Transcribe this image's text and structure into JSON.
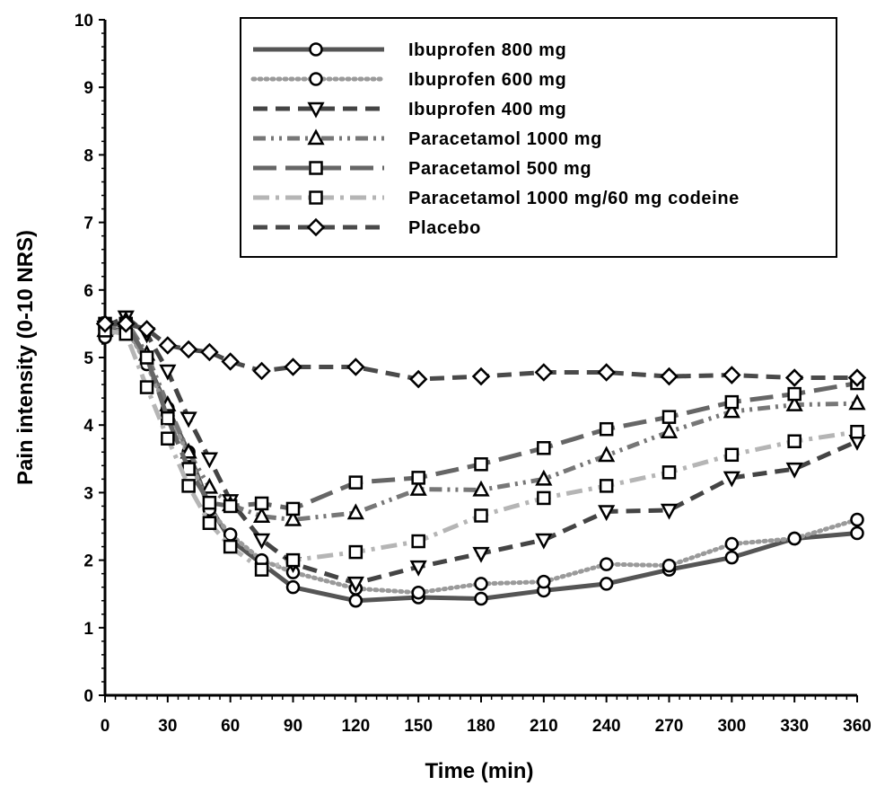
{
  "chart_data": {
    "type": "line",
    "xlabel": "Time (min)",
    "ylabel": "Pain intensity (0-10 NRS)",
    "xlim": [
      0,
      360
    ],
    "ylim": [
      0,
      10
    ],
    "xticks": [
      0,
      30,
      60,
      90,
      120,
      150,
      180,
      210,
      240,
      270,
      300,
      330,
      360
    ],
    "yticks": [
      0,
      1,
      2,
      3,
      4,
      5,
      6,
      7,
      8,
      9,
      10
    ],
    "grid": false,
    "legend_position": "top-right",
    "series": [
      {
        "name": "Ibuprofen 800 mg",
        "style": "solid",
        "marker": "circle",
        "color": "#555555",
        "x": [
          0,
          10,
          20,
          30,
          40,
          50,
          60,
          75,
          90,
          120,
          150,
          180,
          210,
          240,
          270,
          300,
          330,
          360
        ],
        "y": [
          5.35,
          5.45,
          4.95,
          4.25,
          3.6,
          2.8,
          2.3,
          1.95,
          1.6,
          1.4,
          1.45,
          1.43,
          1.55,
          1.65,
          1.86,
          2.04,
          2.32,
          2.4
        ]
      },
      {
        "name": "Ibuprofen 600 mg",
        "style": "dotted",
        "marker": "circle",
        "color": "#9a9a9a",
        "x": [
          0,
          10,
          20,
          30,
          40,
          50,
          60,
          75,
          90,
          120,
          150,
          180,
          210,
          240,
          270,
          300,
          330,
          360
        ],
        "y": [
          5.3,
          5.45,
          4.9,
          4.2,
          3.55,
          2.75,
          2.38,
          2.0,
          1.82,
          1.58,
          1.52,
          1.65,
          1.68,
          1.94,
          1.92,
          2.24,
          2.32,
          2.6
        ]
      },
      {
        "name": "Ibuprofen 400 mg",
        "style": "dashed",
        "marker": "triangle-down",
        "color": "#444444",
        "x": [
          0,
          10,
          20,
          30,
          40,
          50,
          60,
          75,
          90,
          120,
          150,
          180,
          210,
          240,
          270,
          300,
          330,
          360
        ],
        "y": [
          5.45,
          5.6,
          5.35,
          4.8,
          4.1,
          3.5,
          2.88,
          2.3,
          1.95,
          1.66,
          1.9,
          2.1,
          2.3,
          2.72,
          2.74,
          3.22,
          3.35,
          3.76
        ]
      },
      {
        "name": "Paracetamol 1000 mg",
        "style": "dash-dot-dot",
        "marker": "triangle",
        "color": "#777777",
        "x": [
          0,
          10,
          20,
          30,
          40,
          50,
          60,
          75,
          90,
          120,
          150,
          180,
          210,
          240,
          270,
          300,
          330,
          360
        ],
        "y": [
          5.4,
          5.55,
          5.05,
          4.3,
          3.6,
          3.08,
          2.82,
          2.65,
          2.6,
          2.7,
          3.05,
          3.04,
          3.2,
          3.55,
          3.9,
          4.2,
          4.3,
          4.32
        ]
      },
      {
        "name": "Paracetamol 500 mg",
        "style": "long-dash",
        "marker": "square",
        "color": "#666666",
        "x": [
          0,
          10,
          20,
          30,
          40,
          50,
          60,
          75,
          90,
          120,
          150,
          180,
          210,
          240,
          270,
          300,
          330,
          360
        ],
        "y": [
          5.5,
          5.5,
          5.0,
          4.1,
          3.35,
          2.85,
          2.8,
          2.84,
          2.76,
          3.15,
          3.22,
          3.42,
          3.66,
          3.94,
          4.12,
          4.34,
          4.46,
          4.62
        ]
      },
      {
        "name": "Paracetamol 1000 mg/60 mg codeine",
        "style": "dash-dot",
        "marker": "square",
        "color": "#b5b5b5",
        "x": [
          0,
          10,
          20,
          30,
          40,
          50,
          60,
          75,
          90,
          120,
          150,
          180,
          210,
          240,
          270,
          300,
          330,
          360
        ],
        "y": [
          5.4,
          5.35,
          4.56,
          3.8,
          3.1,
          2.55,
          2.2,
          1.86,
          2.0,
          2.12,
          2.28,
          2.66,
          2.92,
          3.1,
          3.3,
          3.56,
          3.76,
          3.9
        ]
      },
      {
        "name": "Placebo",
        "style": "dashed",
        "marker": "diamond",
        "color": "#4a4a4a",
        "x": [
          0,
          10,
          20,
          30,
          40,
          50,
          60,
          75,
          90,
          120,
          150,
          180,
          210,
          240,
          270,
          300,
          330,
          360
        ],
        "y": [
          5.5,
          5.5,
          5.42,
          5.18,
          5.12,
          5.08,
          4.94,
          4.8,
          4.86,
          4.86,
          4.68,
          4.72,
          4.78,
          4.78,
          4.72,
          4.74,
          4.7,
          4.7
        ]
      }
    ]
  }
}
